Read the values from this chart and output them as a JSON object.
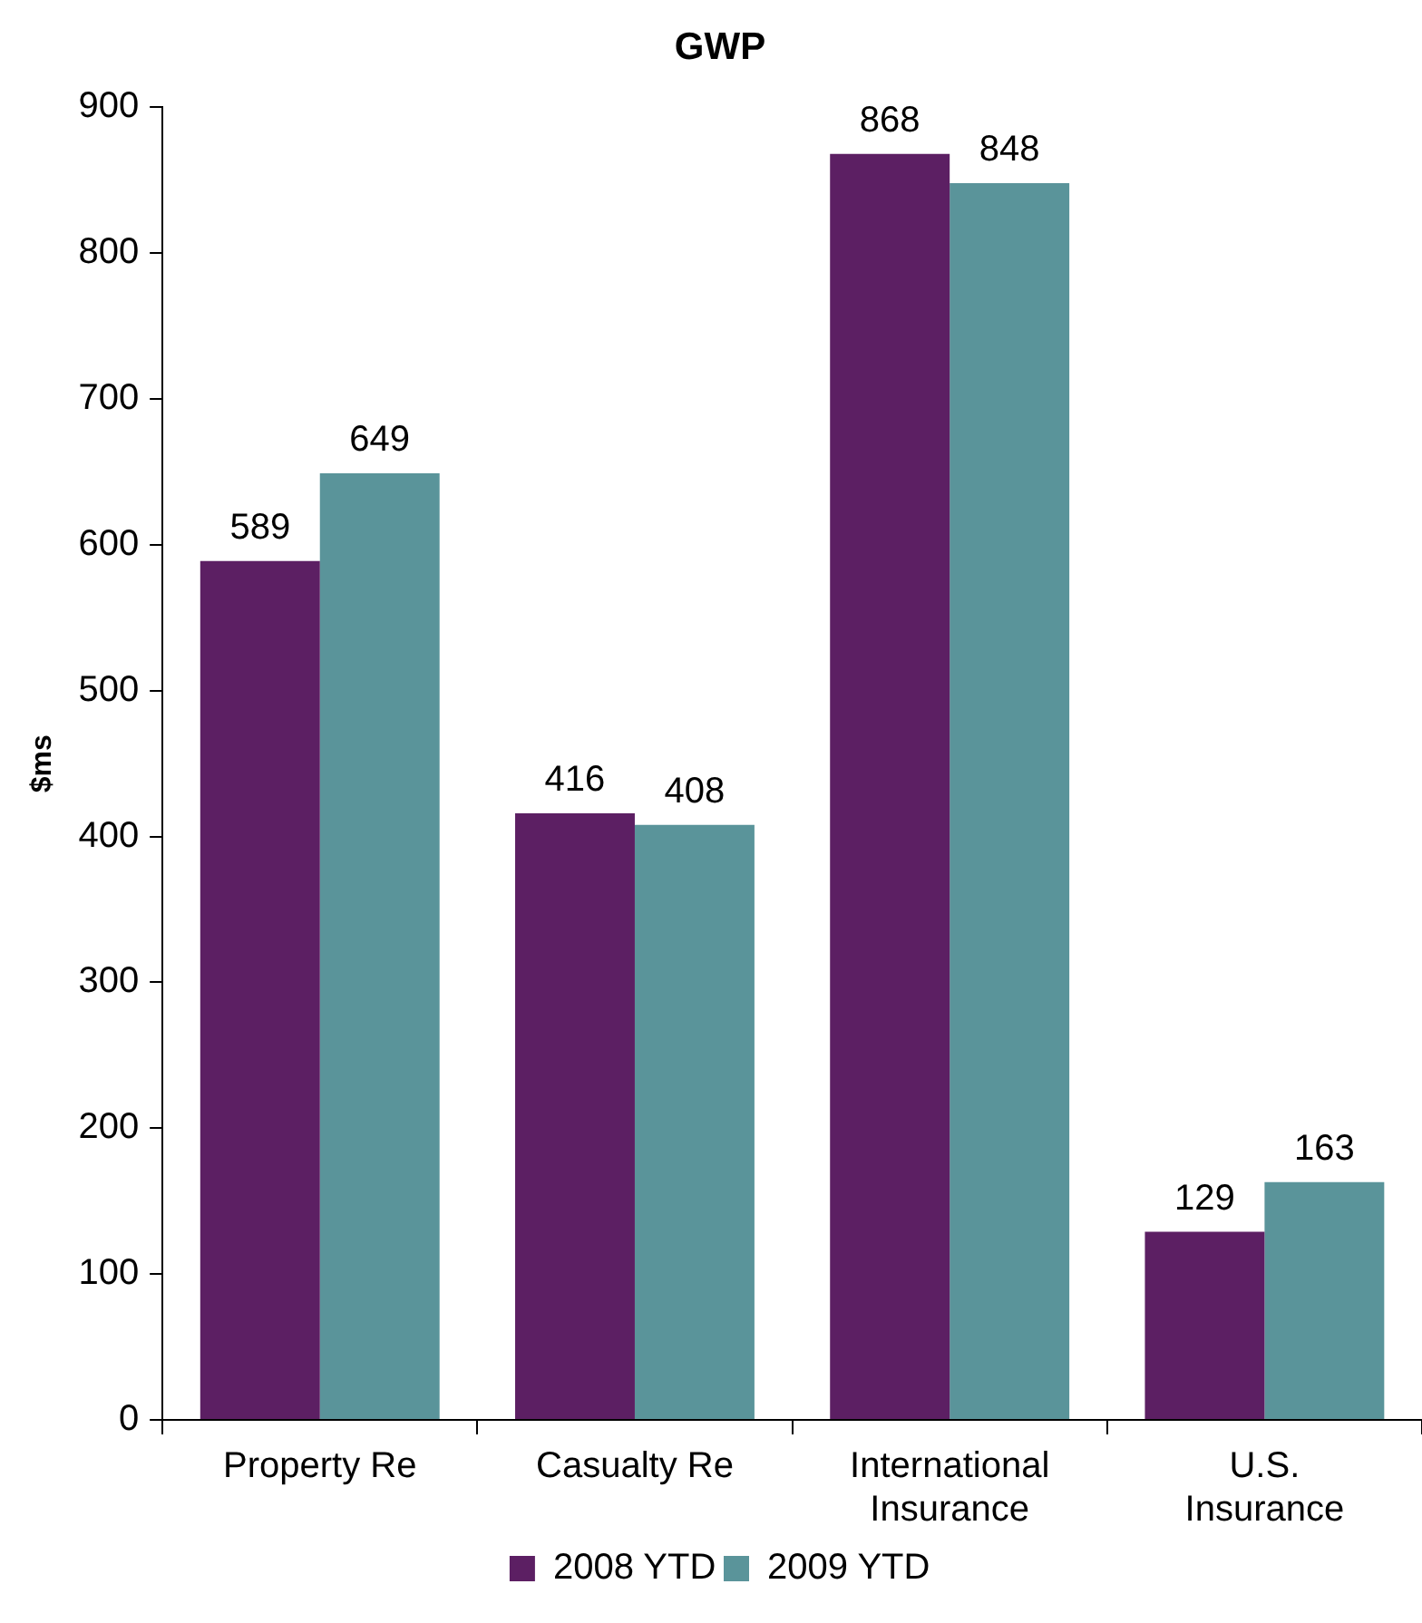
{
  "chart_data": {
    "type": "bar",
    "title": "GWP",
    "ylabel": "$ms",
    "categories": [
      "Property Re",
      "Casualty Re",
      "International\nInsurance",
      "U.S.\nInsurance"
    ],
    "series": [
      {
        "name": "2008 YTD",
        "color": "#5c1f63",
        "values": [
          589,
          416,
          868,
          129
        ]
      },
      {
        "name": "2009 YTD",
        "color": "#5a949a",
        "values": [
          649,
          408,
          848,
          163
        ]
      }
    ],
    "ylim": [
      0,
      900
    ],
    "yticks": [
      0,
      100,
      200,
      300,
      400,
      500,
      600,
      700,
      800,
      900
    ],
    "grid": false,
    "legend": "bottom",
    "data_labels": true
  }
}
